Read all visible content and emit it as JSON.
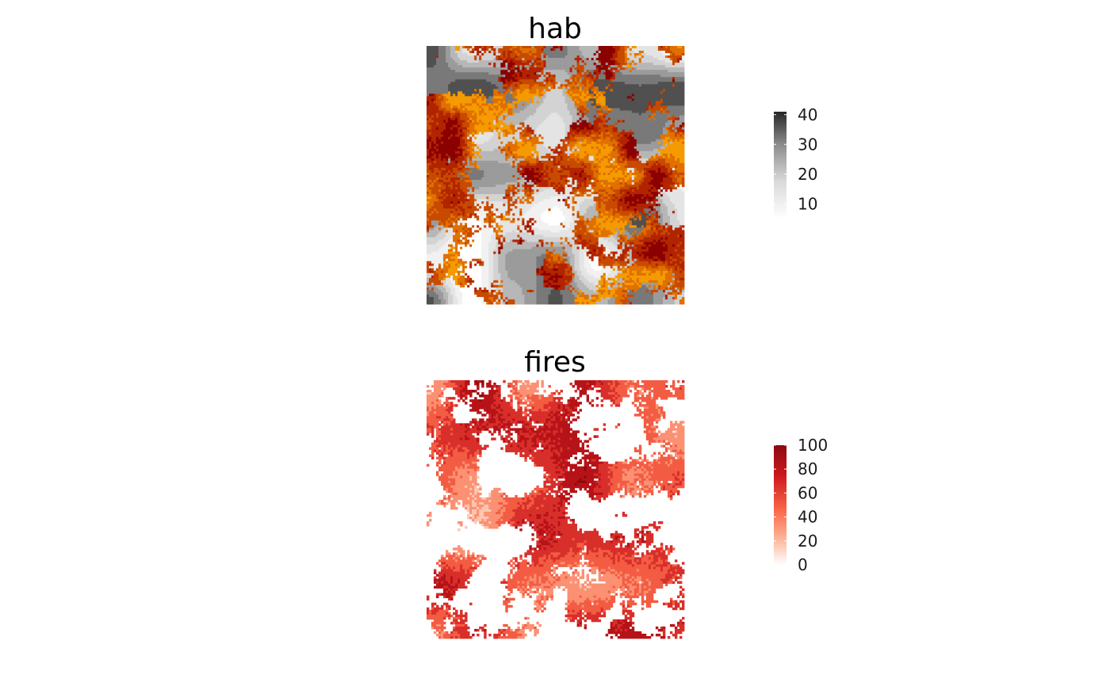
{
  "chart_data": [
    {
      "type": "heatmap",
      "title": "hab",
      "xlabel": "",
      "ylabel": "",
      "grid": false,
      "legend": "right",
      "colorbar": {
        "ticks": [
          10,
          20,
          30,
          40
        ],
        "range": [
          5,
          41
        ],
        "low_color": "#ffffff",
        "high_color": "#262626"
      },
      "overlay": {
        "description_colors": [
          "#8b0000",
          "#b22400",
          "#c84a00",
          "#e07000",
          "#f59a00"
        ]
      }
    },
    {
      "type": "heatmap",
      "title": "fires",
      "xlabel": "",
      "ylabel": "",
      "grid": false,
      "legend": "right",
      "colorbar": {
        "ticks": [
          0,
          20,
          40,
          60,
          80,
          100
        ],
        "range": [
          0,
          100
        ],
        "low_color": "#ffffff",
        "high_color": "#8b0a0f"
      }
    }
  ]
}
